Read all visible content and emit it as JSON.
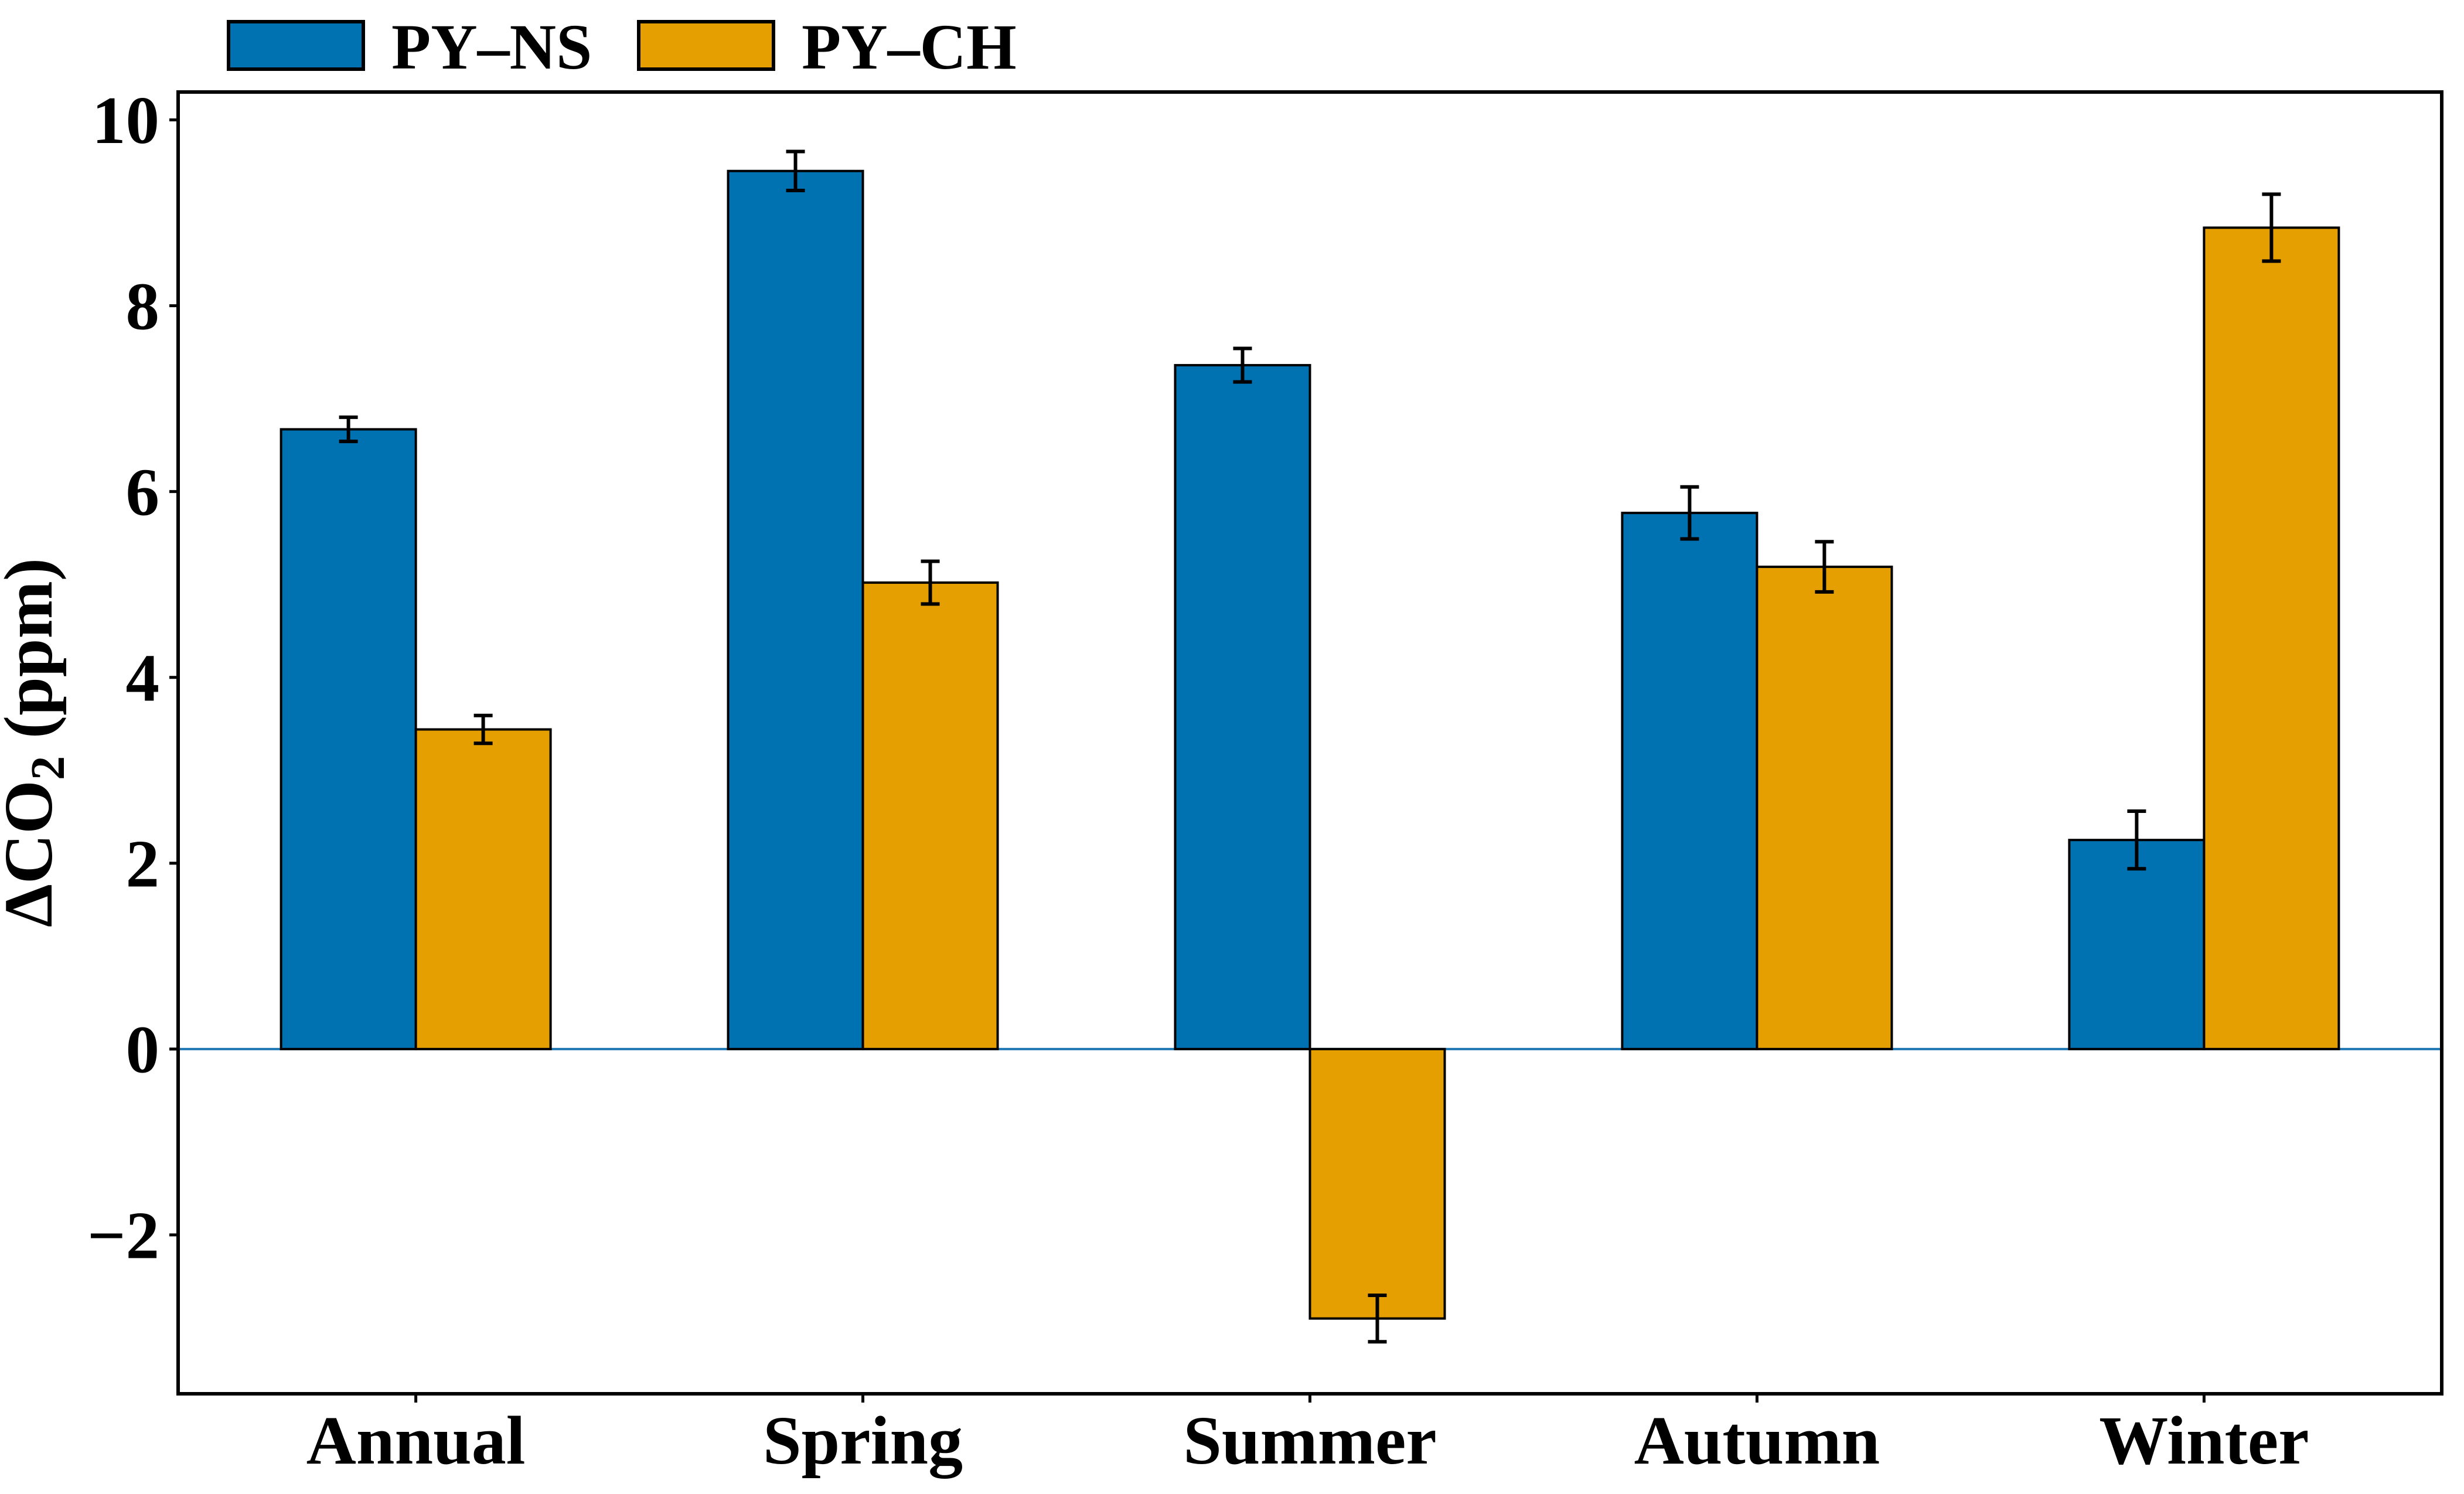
{
  "figure": {
    "background": "#ffffff",
    "ylabel": "ΔCO₂ (ppm)"
  },
  "chart_data": {
    "type": "bar",
    "categories": [
      "Annual",
      "Spring",
      "Summer",
      "Autumn",
      "Winter"
    ],
    "series": [
      {
        "name": "PY–NS",
        "color": "#0072B2",
        "values": [
          6.67,
          9.45,
          7.36,
          5.77,
          2.25
        ],
        "errors": [
          0.13,
          0.21,
          0.18,
          0.28,
          0.31
        ]
      },
      {
        "name": "PY–CH",
        "color": "#E69F00",
        "values": [
          3.44,
          5.02,
          -2.9,
          5.19,
          8.84
        ],
        "errors": [
          0.15,
          0.23,
          0.25,
          0.27,
          0.36
        ]
      }
    ],
    "title": "",
    "xlabel": "",
    "ylabel": "ΔCO₂ (ppm)",
    "yticks": [
      10,
      8,
      6,
      4,
      2,
      0,
      -2
    ],
    "ylim": [
      -3.71,
      10.3
    ],
    "grid": false,
    "bar_edge_color": "#000000",
    "error_bar_color": "#000000",
    "zero_line": {
      "show": true,
      "color": "#1f77b4"
    },
    "legend": {
      "position": "top-left, above axes",
      "frame": false,
      "labels": [
        "PY–NS",
        "PY–CH"
      ]
    },
    "axis_color": "#000000",
    "text_color": "#000000"
  }
}
